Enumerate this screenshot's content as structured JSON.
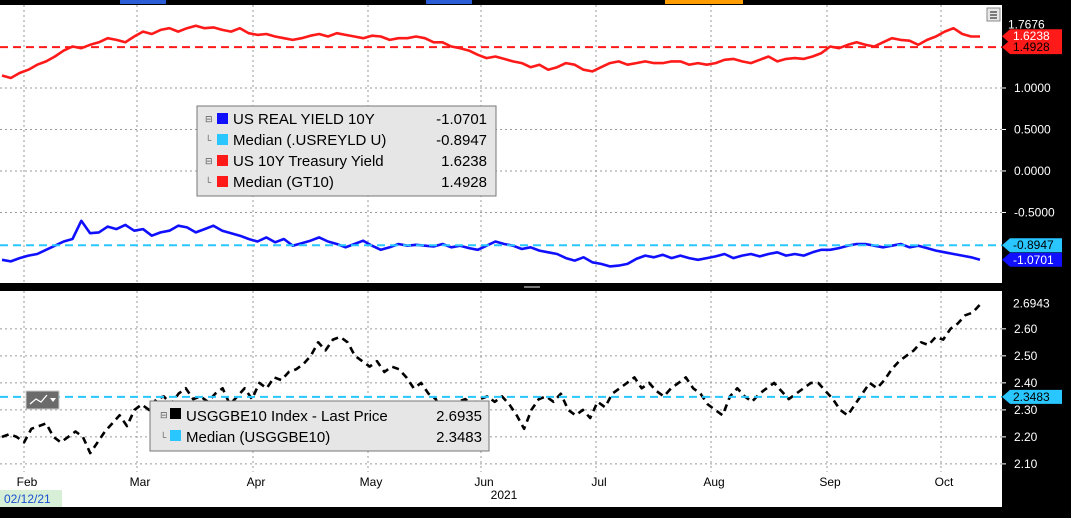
{
  "chart_data": [
    {
      "type": "line",
      "panel": "top",
      "y_axis_ticks": [
        "1.0000",
        "0.5000",
        "0.0000",
        "-0.5000"
      ],
      "ylim": [
        -1.35,
        2.0
      ],
      "series": [
        {
          "name": "US REAL YIELD 10Y",
          "value_label": "-1.0701",
          "last": -1.0701,
          "color": "#1010ff",
          "style": "solid",
          "values": [
            -1.07,
            -1.09,
            -1.05,
            -1.02,
            -1.0,
            -0.95,
            -0.9,
            -0.85,
            -0.82,
            -0.6,
            -0.75,
            -0.74,
            -0.67,
            -0.7,
            -0.65,
            -0.72,
            -0.7,
            -0.78,
            -0.74,
            -0.72,
            -0.66,
            -0.68,
            -0.74,
            -0.7,
            -0.66,
            -0.72,
            -0.75,
            -0.78,
            -0.82,
            -0.85,
            -0.8,
            -0.86,
            -0.82,
            -0.9,
            -0.87,
            -0.84,
            -0.8,
            -0.85,
            -0.88,
            -0.92,
            -0.88,
            -0.84,
            -0.9,
            -0.95,
            -0.92,
            -0.88,
            -0.9,
            -0.89,
            -0.9,
            -0.91,
            -0.88,
            -0.92,
            -0.9,
            -0.93,
            -0.95,
            -0.9,
            -0.85,
            -0.88,
            -0.9,
            -0.94,
            -0.92,
            -0.96,
            -0.98,
            -1.0,
            -1.05,
            -1.08,
            -1.04,
            -1.1,
            -1.12,
            -1.15,
            -1.14,
            -1.12,
            -1.06,
            -1.02,
            -1.04,
            -1.01,
            -1.05,
            -1.02,
            -1.05,
            -1.07,
            -1.05,
            -1.03,
            -1.0,
            -1.05,
            -1.02,
            -1.0,
            -1.03,
            -1.0,
            -0.98,
            -1.02,
            -1.0,
            -1.02,
            -0.98,
            -0.95,
            -0.95,
            -0.93,
            -0.9,
            -0.88,
            -0.88,
            -0.9,
            -0.92,
            -0.9,
            -0.88,
            -0.92,
            -0.9,
            -0.93,
            -0.96,
            -0.98,
            -1.0,
            -1.02,
            -1.04,
            -1.07
          ]
        },
        {
          "name": "Median (.USREYLD U)",
          "value_label": "-0.8947",
          "last": -0.8947,
          "color": "#29c6ff",
          "style": "dashed"
        },
        {
          "name": "US 10Y Treasury Yield",
          "value_label": "1.6238",
          "last": 1.6238,
          "color": "#ff1a1a",
          "style": "solid",
          "values": [
            1.15,
            1.12,
            1.18,
            1.22,
            1.28,
            1.32,
            1.38,
            1.45,
            1.5,
            1.48,
            1.52,
            1.55,
            1.6,
            1.58,
            1.55,
            1.62,
            1.68,
            1.65,
            1.7,
            1.72,
            1.68,
            1.72,
            1.75,
            1.72,
            1.73,
            1.7,
            1.68,
            1.72,
            1.66,
            1.64,
            1.65,
            1.62,
            1.6,
            1.58,
            1.6,
            1.63,
            1.65,
            1.62,
            1.66,
            1.64,
            1.62,
            1.6,
            1.63,
            1.62,
            1.58,
            1.6,
            1.6,
            1.62,
            1.6,
            1.55,
            1.55,
            1.5,
            1.48,
            1.45,
            1.4,
            1.36,
            1.38,
            1.35,
            1.32,
            1.3,
            1.25,
            1.28,
            1.22,
            1.25,
            1.3,
            1.28,
            1.22,
            1.2,
            1.25,
            1.3,
            1.32,
            1.28,
            1.3,
            1.32,
            1.3,
            1.3,
            1.32,
            1.32,
            1.28,
            1.3,
            1.28,
            1.3,
            1.34,
            1.35,
            1.32,
            1.3,
            1.34,
            1.38,
            1.32,
            1.35,
            1.36,
            1.35,
            1.38,
            1.42,
            1.5,
            1.48,
            1.52,
            1.55,
            1.52,
            1.5,
            1.55,
            1.6,
            1.58,
            1.57,
            1.52,
            1.58,
            1.62,
            1.68,
            1.72,
            1.65,
            1.62,
            1.62
          ]
        },
        {
          "name": "Median (GT10)",
          "value_label": "1.4928",
          "last": 1.4928,
          "color": "#ff1a1a",
          "style": "dashed"
        }
      ],
      "top_label": "1.7676",
      "legend_position": "upper-left-center"
    },
    {
      "type": "line",
      "panel": "bottom",
      "y_axis_ticks": [
        "2.60",
        "2.50",
        "2.40",
        "2.30",
        "2.20",
        "2.10"
      ],
      "ylim": [
        2.07,
        2.74
      ],
      "series": [
        {
          "name": "USGGBE10 Index - Last Price",
          "value_label": "2.6935",
          "last": 2.6935,
          "color": "#000000",
          "style": "dashed",
          "values": [
            2.2,
            2.21,
            2.2,
            2.18,
            2.23,
            2.24,
            2.25,
            2.2,
            2.18,
            2.2,
            2.22,
            2.2,
            2.14,
            2.18,
            2.22,
            2.25,
            2.28,
            2.24,
            2.3,
            2.32,
            2.3,
            2.34,
            2.35,
            2.32,
            2.36,
            2.38,
            2.34,
            2.35,
            2.33,
            2.36,
            2.38,
            2.32,
            2.35,
            2.38,
            2.34,
            2.4,
            2.38,
            2.42,
            2.41,
            2.44,
            2.45,
            2.47,
            2.5,
            2.55,
            2.52,
            2.56,
            2.57,
            2.55,
            2.5,
            2.48,
            2.46,
            2.48,
            2.44,
            2.46,
            2.45,
            2.42,
            2.38,
            2.4,
            2.36,
            2.34,
            2.27,
            2.3,
            2.33,
            2.34,
            2.32,
            2.34,
            2.35,
            2.33,
            2.35,
            2.32,
            2.28,
            2.23,
            2.3,
            2.34,
            2.35,
            2.33,
            2.36,
            2.3,
            2.28,
            2.3,
            2.27,
            2.33,
            2.31,
            2.36,
            2.38,
            2.4,
            2.42,
            2.38,
            2.4,
            2.37,
            2.35,
            2.38,
            2.4,
            2.42,
            2.38,
            2.36,
            2.32,
            2.3,
            2.28,
            2.35,
            2.38,
            2.35,
            2.33,
            2.36,
            2.38,
            2.4,
            2.37,
            2.34,
            2.36,
            2.38,
            2.4,
            2.4,
            2.37,
            2.34,
            2.3,
            2.28,
            2.32,
            2.36,
            2.4,
            2.38,
            2.41,
            2.45,
            2.48,
            2.5,
            2.52,
            2.55,
            2.54,
            2.57,
            2.56,
            2.6,
            2.62,
            2.65,
            2.66,
            2.69
          ]
        },
        {
          "name": "Median (USGGBE10)",
          "value_label": "2.3483",
          "last": 2.3483,
          "color": "#29c6ff",
          "style": "dashed"
        }
      ],
      "legend_position": "lower-left-center"
    }
  ],
  "x_axis": {
    "months": [
      "Feb",
      "Mar",
      "Apr",
      "May",
      "Jun",
      "Jul",
      "Aug",
      "Sep",
      "Oct"
    ],
    "year_label": "2021",
    "start_date": "02/12/21"
  },
  "legend_top": {
    "items": [
      {
        "label": "US REAL YIELD 10Y",
        "value": "-1.0701",
        "swatch": "#1010ff"
      },
      {
        "label": "Median (.USREYLD U)",
        "value": "-0.8947",
        "swatch": "#29c6ff"
      },
      {
        "label": "US 10Y Treasury Yield",
        "value": "1.6238",
        "swatch": "#ff1a1a"
      },
      {
        "label": "Median (GT10)",
        "value": "1.4928",
        "swatch": "#ff1a1a"
      }
    ]
  },
  "legend_bottom": {
    "items": [
      {
        "label": "USGGBE10 Index - Last Price",
        "value": "2.6935",
        "swatch": "#000000"
      },
      {
        "label": "Median (USGGBE10)",
        "value": "2.3483",
        "swatch": "#29c6ff"
      }
    ]
  },
  "colors": {
    "plot_bg": "#ffffff",
    "frame_bg": "#000000",
    "grid": "#9a9a9a",
    "accent_top_bar": "#ff9d00",
    "accent_blue_tab": "#2a5dd6"
  }
}
